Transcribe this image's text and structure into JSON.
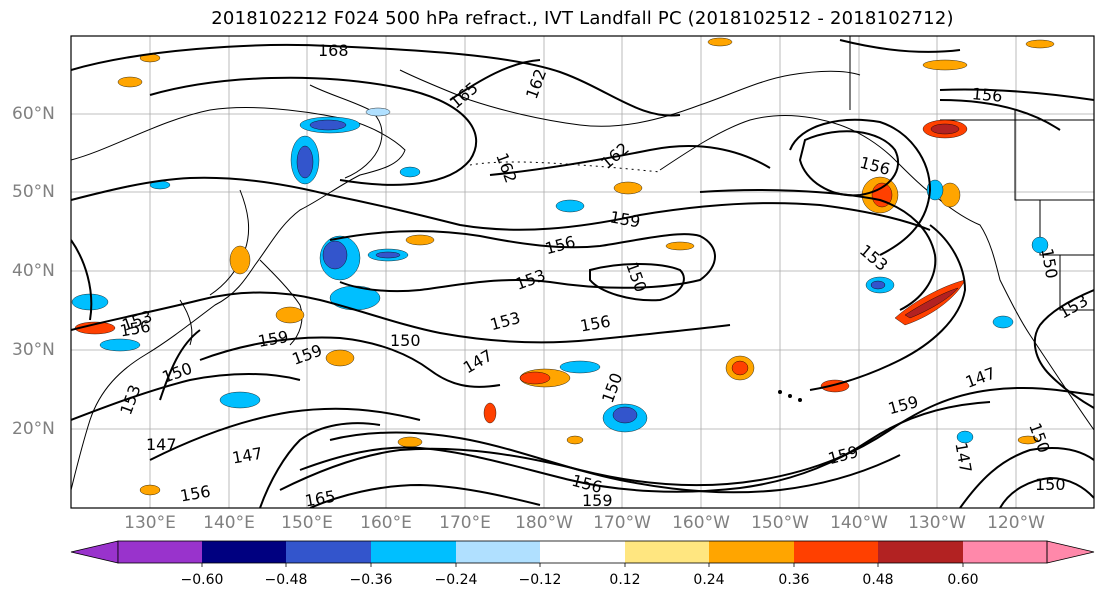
{
  "title": "2018102212 F024 500 hPa refract., IVT Landfall PC (2018102512 - 2018102712)",
  "lat_labels": [
    "60°N",
    "50°N",
    "40°N",
    "30°N",
    "20°N"
  ],
  "lon_labels": [
    "130°E",
    "140°E",
    "150°E",
    "160°E",
    "170°E",
    "180°W",
    "170°W",
    "160°W",
    "150°W",
    "140°W",
    "130°W",
    "120°W"
  ],
  "colorbar": {
    "ticks": [
      "−0.60",
      "−0.48",
      "−0.36",
      "−0.24",
      "−0.12",
      "0.12",
      "0.24",
      "0.36",
      "0.48",
      "0.60"
    ],
    "colors": [
      "#9933cc",
      "#000080",
      "#3355cc",
      "#00bfff",
      "#b0e0ff",
      "#ffffff",
      "#ffe680",
      "#ffa500",
      "#ff4000",
      "#b22222",
      "#ff88aa"
    ]
  },
  "contour_labels": [
    "168",
    "165",
    "162",
    "162",
    "162",
    "159",
    "156",
    "153",
    "150",
    "153",
    "156",
    "159",
    "150",
    "147",
    "156",
    "159",
    "153",
    "150",
    "147",
    "156",
    "153",
    "150",
    "147",
    "165",
    "156",
    "159",
    "150",
    "159",
    "156",
    "153",
    "150",
    "147",
    "159",
    "153",
    "156",
    "147",
    "150"
  ]
}
